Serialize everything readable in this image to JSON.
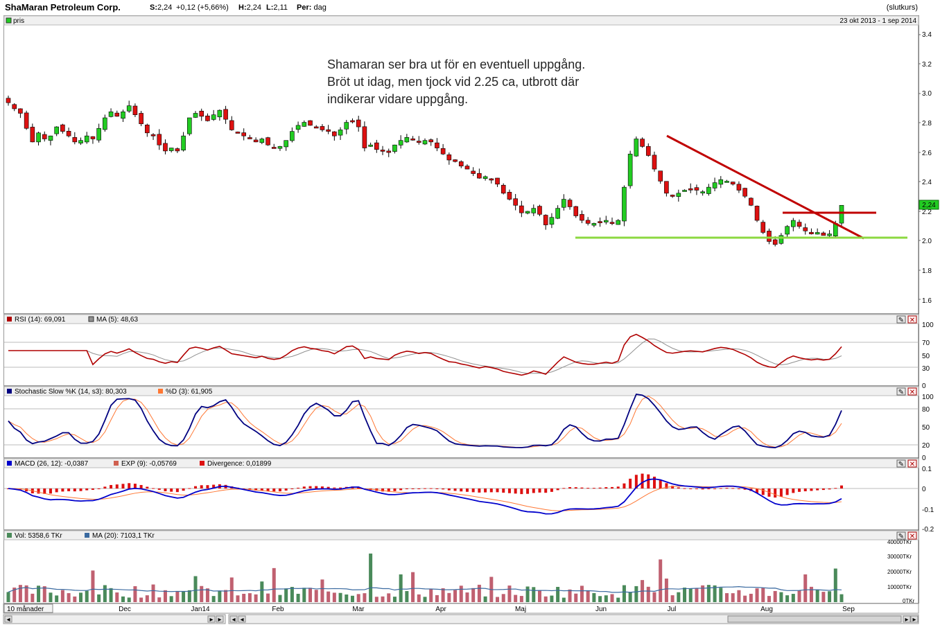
{
  "header": {
    "title": "ShaMaran Petroleum Corp.",
    "s_label": "S:",
    "s_value": "2,24",
    "change": "+0,12 (+5,66%)",
    "h_label": "H:",
    "h_value": "2,24",
    "l_label": "L:",
    "l_value": "2,11",
    "per_label": "Per:",
    "per_value": "dag",
    "slutkurs": "(slutkurs)"
  },
  "price_panel": {
    "legend": "pris",
    "date_range": "23 okt 2013 - 1 sep 2014",
    "last_price_tag": "2,24",
    "annotation_lines": [
      "Shamaran ser bra ut för en eventuell uppgång.",
      "Bröt ut idag, men tjock vid 2.25 ca, utbrott där",
      "indikerar vidare uppgång."
    ]
  },
  "rsi_panel": {
    "legend_main": "RSI (14): 69,091",
    "legend_ma": "MA (5): 48,63"
  },
  "stoch_panel": {
    "legend_k": "Stochastic Slow %K (14, s3): 80,303",
    "legend_d": "%D (3): 61,905"
  },
  "macd_panel": {
    "legend_macd": "MACD (26, 12): -0,0387",
    "legend_exp": "EXP (9): -0,05769",
    "legend_div": "Divergence: 0,01899"
  },
  "volume_panel": {
    "legend_vol": "Vol: 5358,6 TKr",
    "legend_ma": "MA (20): 7103,1 TKr"
  },
  "timeline": {
    "period_select": "10 månader",
    "months": [
      "Dec",
      "Jan14",
      "Feb",
      "Mar",
      "Apr",
      "Maj",
      "Jun",
      "Jul",
      "Aug",
      "Sep"
    ]
  },
  "colors": {
    "up_candle": "#22cc22",
    "down_candle": "#dd1111",
    "trend_line": "#c00000",
    "support_line": "#8cd840",
    "rsi_line": "#b00000",
    "ma_line": "#909090",
    "stoch_k": "#000080",
    "stoch_d": "#ff7733",
    "macd_line": "#0000cc",
    "vol_up": "#4a8a5a",
    "vol_down": "#c06070"
  },
  "chart_data": [
    {
      "type": "candlestick",
      "title": "ShaMaran Petroleum Corp.",
      "x_range": [
        "23 okt 2013",
        "1 sep 2014"
      ],
      "y_ticks": [
        "1.6",
        "1.8",
        "2.0",
        "2.2",
        "2.4",
        "2.6",
        "2.8",
        "3.0",
        "3.2",
        "3.4"
      ],
      "ylim": [
        1.52,
        3.5
      ],
      "close_series": [
        2.92,
        2.88,
        2.85,
        2.75,
        2.66,
        2.72,
        2.68,
        2.7,
        2.76,
        2.73,
        2.7,
        2.66,
        2.67,
        2.7,
        2.68,
        2.75,
        2.82,
        2.86,
        2.83,
        2.86,
        2.9,
        2.84,
        2.78,
        2.72,
        2.7,
        2.64,
        2.6,
        2.62,
        2.6,
        2.7,
        2.82,
        2.85,
        2.83,
        2.8,
        2.84,
        2.87,
        2.81,
        2.74,
        2.72,
        2.7,
        2.68,
        2.66,
        2.68,
        2.64,
        2.62,
        2.63,
        2.67,
        2.73,
        2.77,
        2.79,
        2.77,
        2.76,
        2.74,
        2.73,
        2.7,
        2.74,
        2.79,
        2.8,
        2.76,
        2.62,
        2.64,
        2.61,
        2.6,
        2.59,
        2.64,
        2.67,
        2.69,
        2.68,
        2.66,
        2.67,
        2.66,
        2.62,
        2.58,
        2.54,
        2.53,
        2.5,
        2.48,
        2.45,
        2.42,
        2.43,
        2.41,
        2.38,
        2.32,
        2.28,
        2.24,
        2.19,
        2.2,
        2.22,
        2.18,
        2.11,
        2.16,
        2.22,
        2.28,
        2.23,
        2.17,
        2.14,
        2.12,
        2.12,
        2.13,
        2.14,
        2.12,
        2.14,
        2.36,
        2.58,
        2.68,
        2.63,
        2.57,
        2.48,
        2.4,
        2.32,
        2.3,
        2.32,
        2.34,
        2.35,
        2.34,
        2.33,
        2.36,
        2.39,
        2.41,
        2.4,
        2.38,
        2.34,
        2.3,
        2.24,
        2.14,
        2.06,
        2.0,
        1.98,
        2.04,
        2.1,
        2.14,
        2.1,
        2.07,
        2.05,
        2.06,
        2.04,
        2.05,
        2.12,
        2.24
      ],
      "annotations": [
        {
          "label": "resistance trend line (red)",
          "from": [
            "≈1 jul 2014",
            2.7
          ],
          "to": [
            "≈1 sep 2014",
            2.01
          ]
        },
        {
          "label": "horizontal resistance (red)",
          "from": [
            "≈12 aug 2014",
            2.18
          ],
          "to": [
            "1 sep 2014",
            2.18
          ]
        },
        {
          "label": "support line (green)",
          "y": 2.02,
          "from": "≈21 maj 2014",
          "to": "1 sep 2014"
        }
      ]
    },
    {
      "type": "line",
      "title": "RSI (14): 69,091",
      "y_ticks": [
        "0",
        "30",
        "50",
        "70",
        "100"
      ],
      "ylim": [
        0,
        100
      ],
      "series": [
        {
          "name": "RSI (14): 69,091",
          "last": 69.091
        },
        {
          "name": "MA (5): 48,63",
          "last": 48.63
        }
      ]
    },
    {
      "type": "line",
      "title": "Stochastic Slow",
      "y_ticks": [
        "0",
        "20",
        "50",
        "80",
        "100"
      ],
      "ylim": [
        0,
        100
      ],
      "series": [
        {
          "name": "Stochastic Slow %K (14, s3): 80,303",
          "last": 80.303
        },
        {
          "name": "%D (3): 61,905",
          "last": 61.905
        }
      ]
    },
    {
      "type": "line",
      "title": "MACD",
      "y_ticks": [
        "-0.2",
        "-0.1",
        "0",
        "0.1"
      ],
      "ylim": [
        -0.2,
        0.1
      ],
      "series": [
        {
          "name": "MACD (26, 12): -0,0387",
          "last": -0.0387
        },
        {
          "name": "EXP (9): -0,05769",
          "last": -0.05769
        },
        {
          "name": "Divergence: 0,01899",
          "last": 0.01899
        }
      ]
    },
    {
      "type": "bar",
      "title": "Volume",
      "y_ticks": [
        "0TKr",
        "10000TKr",
        "20000TKr",
        "30000TKr",
        "40000TKr"
      ],
      "ylim": [
        0,
        40000
      ],
      "series": [
        {
          "name": "Vol: 5358,6 TKr",
          "last": 5358.6
        },
        {
          "name": "MA (20): 7103,1 TKr",
          "last": 7103.1
        }
      ]
    }
  ]
}
